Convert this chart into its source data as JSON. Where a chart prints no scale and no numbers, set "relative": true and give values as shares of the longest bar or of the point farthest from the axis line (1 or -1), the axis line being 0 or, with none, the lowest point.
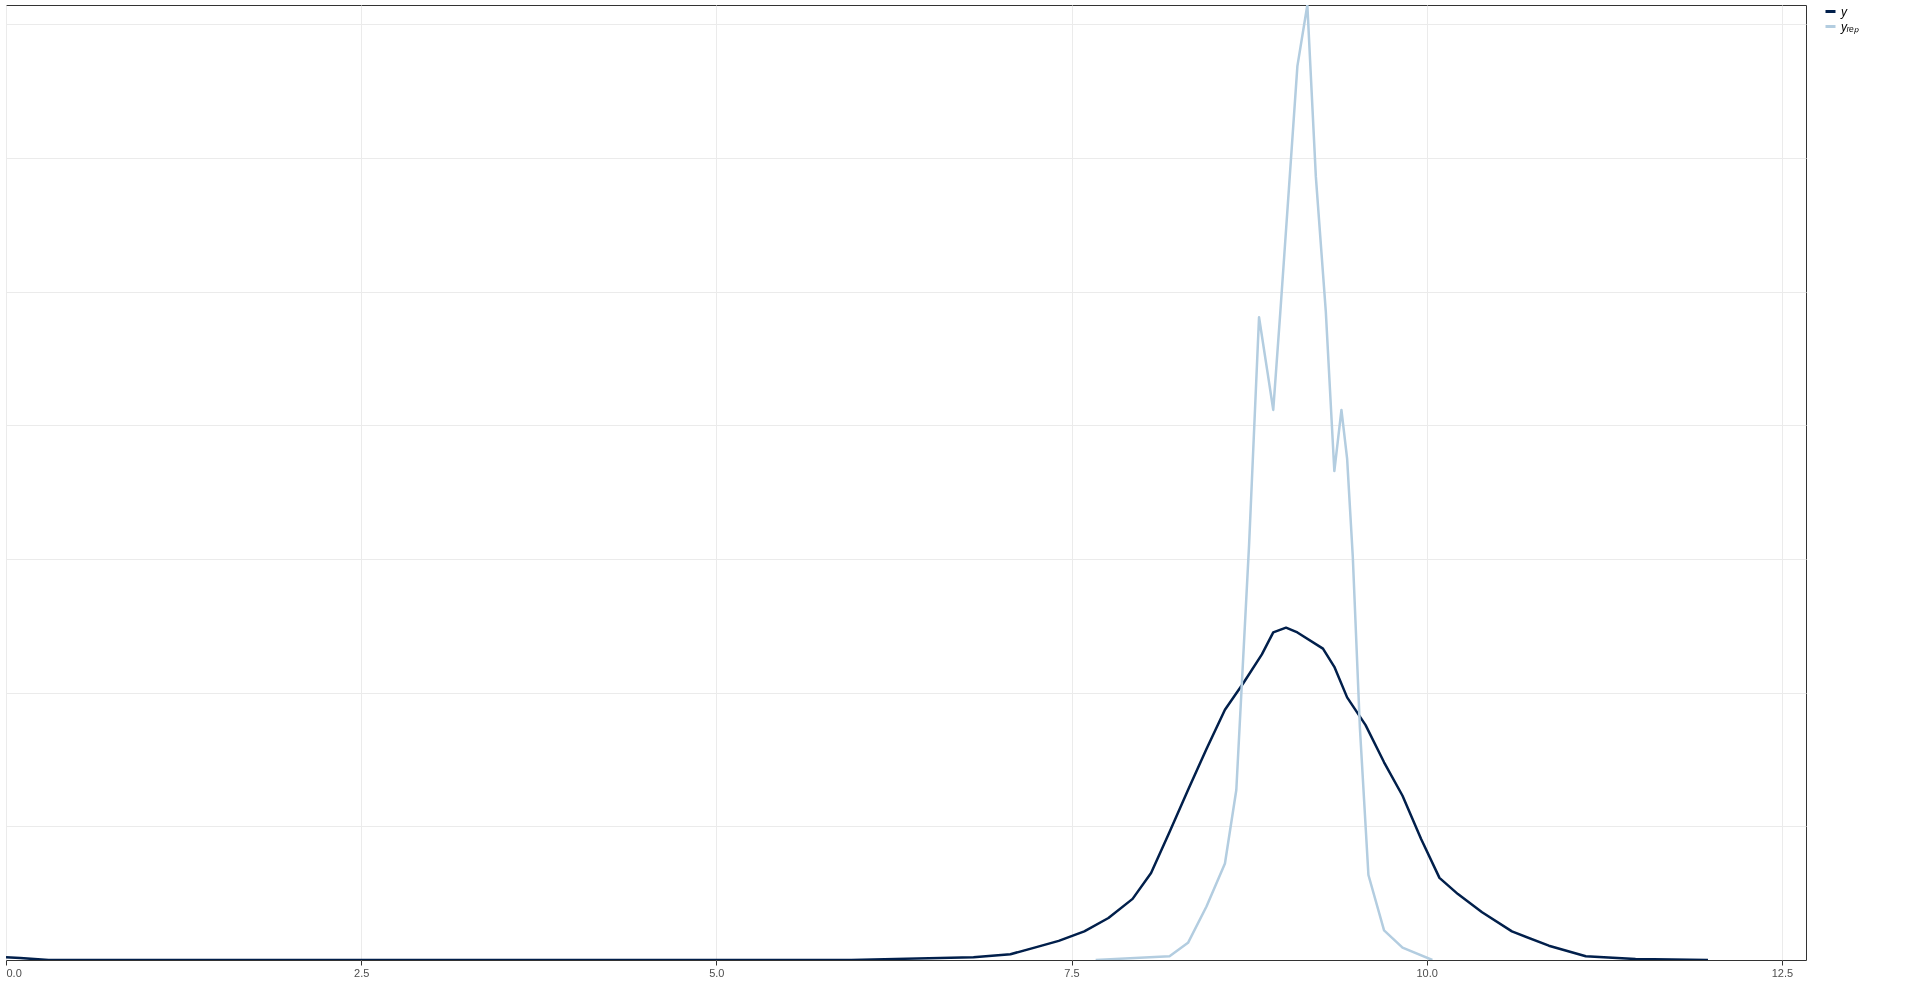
{
  "chart_data": {
    "type": "line",
    "relative": true,
    "xlim": [
      0,
      12.67
    ],
    "xticks": [
      {
        "value": 0,
        "label": "0.0"
      },
      2.5,
      {
        "value": 5,
        "label": "5.0"
      },
      7.5,
      {
        "value": 10,
        "label": "10.0"
      },
      12.5
    ],
    "grid": true,
    "legend": "right",
    "line_style": "solid",
    "marker": "none",
    "series": [
      {
        "name": "y",
        "color": "#011f4b",
        "x": [
          0,
          0.1,
          0.3,
          5.95,
          6.81,
          7.07,
          7.24,
          7.41,
          7.59,
          7.76,
          7.93,
          8.06,
          8.19,
          8.32,
          8.45,
          8.58,
          8.71,
          8.84,
          8.92,
          9.01,
          9.09,
          9.27,
          9.35,
          9.44,
          9.57,
          9.7,
          9.83,
          9.96,
          10.09,
          10.22,
          10.39,
          10.6,
          10.86,
          11.12,
          11.47,
          11.98
        ],
        "values": [
          0.003,
          0.002,
          0,
          0,
          0.003,
          0.006,
          0.013,
          0.02,
          0.03,
          0.044,
          0.064,
          0.091,
          0.134,
          0.178,
          0.221,
          0.262,
          0.29,
          0.32,
          0.343,
          0.348,
          0.343,
          0.326,
          0.307,
          0.275,
          0.246,
          0.207,
          0.172,
          0.127,
          0.086,
          0.069,
          0.05,
          0.03,
          0.015,
          0.004,
          0.001,
          0
        ]
      },
      {
        "name": "yᵣₑₚ",
        "color": "#b3cde0",
        "x": [
          7.67,
          8.19,
          8.32,
          8.45,
          8.58,
          8.66,
          8.75,
          8.82,
          8.88,
          8.92,
          8.97,
          9.03,
          9.09,
          9.16,
          9.22,
          9.29,
          9.35,
          9.4,
          9.44,
          9.48,
          9.53,
          9.59,
          9.7,
          9.83,
          10.04
        ],
        "values": [
          0,
          0.004,
          0.018,
          0.056,
          0.101,
          0.178,
          0.435,
          0.673,
          0.615,
          0.576,
          0.679,
          0.807,
          0.936,
          1,
          0.82,
          0.679,
          0.512,
          0.576,
          0.525,
          0.422,
          0.243,
          0.089,
          0.031,
          0.013,
          0
        ]
      }
    ]
  }
}
